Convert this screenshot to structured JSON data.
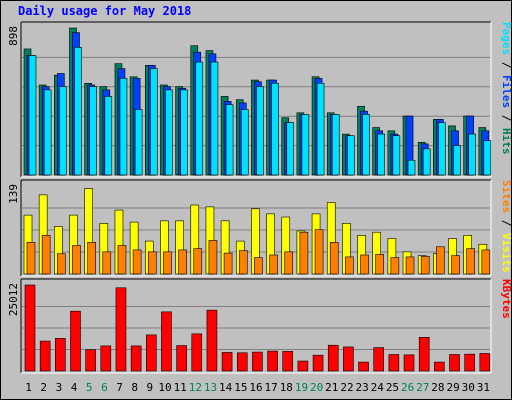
{
  "title": "Daily usage for May 2018",
  "colors": {
    "hits": "#00805C",
    "files": "#0040FF",
    "pages": "#00E0FF",
    "visits": "#FFFF00",
    "sites": "#FF8000",
    "kbytes": "#FF0000",
    "weekend_day_label": "#00805C",
    "weekday_label": "#000000"
  },
  "chart_data": [
    {
      "type": "bar",
      "panel": "hits-files-pages",
      "right_label_parts": [
        {
          "text": "Pages",
          "color_key": "pages"
        },
        {
          "text": " / ",
          "color_key": null
        },
        {
          "text": "Files",
          "color_key": "files"
        },
        {
          "text": " / ",
          "color_key": null
        },
        {
          "text": "Hits",
          "color_key": "hits"
        }
      ],
      "ymax_label": "898",
      "ylim": [
        0,
        898
      ],
      "series": [
        {
          "name": "Hits",
          "color_key": "hits",
          "values": [
            770,
            550,
            610,
            898,
            560,
            540,
            680,
            600,
            670,
            550,
            540,
            790,
            760,
            480,
            460,
            580,
            580,
            350,
            380,
            600,
            380,
            250,
            420,
            290,
            270,
            360,
            200,
            340,
            300,
            360,
            290
          ]
        },
        {
          "name": "Files",
          "color_key": "files",
          "values": [
            730,
            540,
            620,
            870,
            550,
            520,
            650,
            590,
            670,
            540,
            530,
            750,
            740,
            450,
            440,
            570,
            580,
            320,
            370,
            590,
            370,
            240,
            390,
            270,
            250,
            360,
            190,
            340,
            270,
            360,
            270
          ]
        },
        {
          "name": "Pages",
          "color_key": "pages",
          "values": [
            730,
            520,
            540,
            780,
            540,
            480,
            590,
            400,
            650,
            520,
            520,
            690,
            690,
            430,
            400,
            540,
            560,
            320,
            370,
            560,
            370,
            240,
            370,
            250,
            240,
            90,
            160,
            320,
            180,
            250,
            210
          ]
        }
      ]
    },
    {
      "type": "bar",
      "panel": "sites-visits",
      "right_label_parts": [
        {
          "text": "Sites",
          "color_key": "sites"
        },
        {
          "text": " / ",
          "color_key": null
        },
        {
          "text": "Visits",
          "color_key": "visits"
        }
      ],
      "ymax_label": "139",
      "ylim": [
        0,
        139
      ],
      "series": [
        {
          "name": "Visits",
          "color_key": "visits",
          "values": [
            93,
            125,
            75,
            93,
            135,
            80,
            101,
            82,
            52,
            84,
            84,
            109,
            106,
            84,
            52,
            103,
            95,
            90,
            68,
            95,
            113,
            80,
            61,
            66,
            56,
            35,
            29,
            32,
            56,
            61,
            47
          ]
        },
        {
          "name": "Sites",
          "color_key": "sites",
          "values": [
            50,
            61,
            32,
            45,
            50,
            35,
            45,
            38,
            35,
            35,
            38,
            40,
            53,
            33,
            37,
            26,
            30,
            35,
            66,
            70,
            50,
            27,
            30,
            31,
            26,
            27,
            28,
            43,
            29,
            40,
            38
          ]
        }
      ]
    },
    {
      "type": "bar",
      "panel": "kbytes",
      "right_label_parts": [
        {
          "text": "KBytes",
          "color_key": "kbytes"
        }
      ],
      "ymax_label": "25012",
      "ylim": [
        0,
        25012
      ],
      "series": [
        {
          "name": "KBytes",
          "color_key": "kbytes",
          "values": [
            25012,
            8700,
            9500,
            17400,
            6200,
            7300,
            24200,
            7300,
            10500,
            17200,
            7400,
            10800,
            17700,
            5400,
            5300,
            5500,
            5800,
            5700,
            2900,
            4600,
            7500,
            7000,
            2600,
            6800,
            4800,
            4700,
            9800,
            2600,
            4800,
            4900,
            5100
          ]
        }
      ]
    }
  ],
  "x_axis": {
    "labels": [
      "1",
      "2",
      "3",
      "4",
      "5",
      "6",
      "7",
      "8",
      "9",
      "10",
      "11",
      "12",
      "13",
      "14",
      "15",
      "16",
      "17",
      "18",
      "19",
      "20",
      "21",
      "22",
      "23",
      "24",
      "25",
      "26",
      "27",
      "28",
      "29",
      "30",
      "31"
    ],
    "weekend": [
      5,
      6,
      12,
      13,
      19,
      20,
      26,
      27
    ]
  }
}
